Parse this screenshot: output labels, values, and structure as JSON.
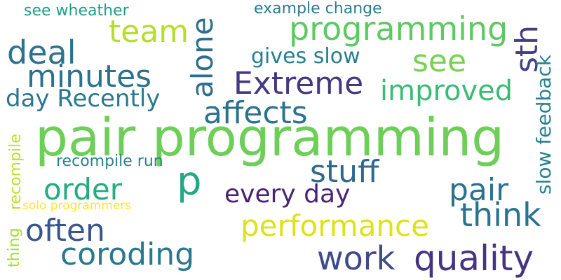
{
  "words": [
    {
      "text": "pair programming",
      "color": "#6ecf58"
    },
    {
      "text": "programming",
      "color": "#5ec962"
    },
    {
      "text": "team",
      "color": "#b5de2b"
    },
    {
      "text": "deal",
      "color": "#2c728e"
    },
    {
      "text": "alone",
      "color": "#2e6e8e"
    },
    {
      "text": "sth",
      "color": "#433e85"
    },
    {
      "text": "minutes",
      "color": "#2c728e"
    },
    {
      "text": "Extreme",
      "color": "#453781"
    },
    {
      "text": "gives slow",
      "color": "#287d8e"
    },
    {
      "text": "see",
      "color": "#7ad151"
    },
    {
      "text": "improved",
      "color": "#3bbb75"
    },
    {
      "text": "day Recently",
      "color": "#2a788e"
    },
    {
      "text": "affects",
      "color": "#2c728e"
    },
    {
      "text": "slow feedback",
      "color": "#26828e"
    },
    {
      "text": "see wheather",
      "color": "#1f9e89"
    },
    {
      "text": "example change",
      "color": "#287d8e"
    },
    {
      "text": "p",
      "color": "#22a884"
    },
    {
      "text": "stuff",
      "color": "#31688e"
    },
    {
      "text": "recompile run",
      "color": "#26828e"
    },
    {
      "text": "order",
      "color": "#25ab82"
    },
    {
      "text": "pair",
      "color": "#2c728e"
    },
    {
      "text": "every day",
      "color": "#482475"
    },
    {
      "text": "recompile",
      "color": "#bddf26"
    },
    {
      "text": "solo programmers",
      "color": "#fde725"
    },
    {
      "text": "think",
      "color": "#2c728e"
    },
    {
      "text": "often",
      "color": "#39568c"
    },
    {
      "text": "performance",
      "color": "#dde318"
    },
    {
      "text": "thing",
      "color": "#a5db36"
    },
    {
      "text": "coroding",
      "color": "#2a788e"
    },
    {
      "text": "work",
      "color": "#3e4a89"
    },
    {
      "text": "quality",
      "color": "#463480"
    }
  ]
}
